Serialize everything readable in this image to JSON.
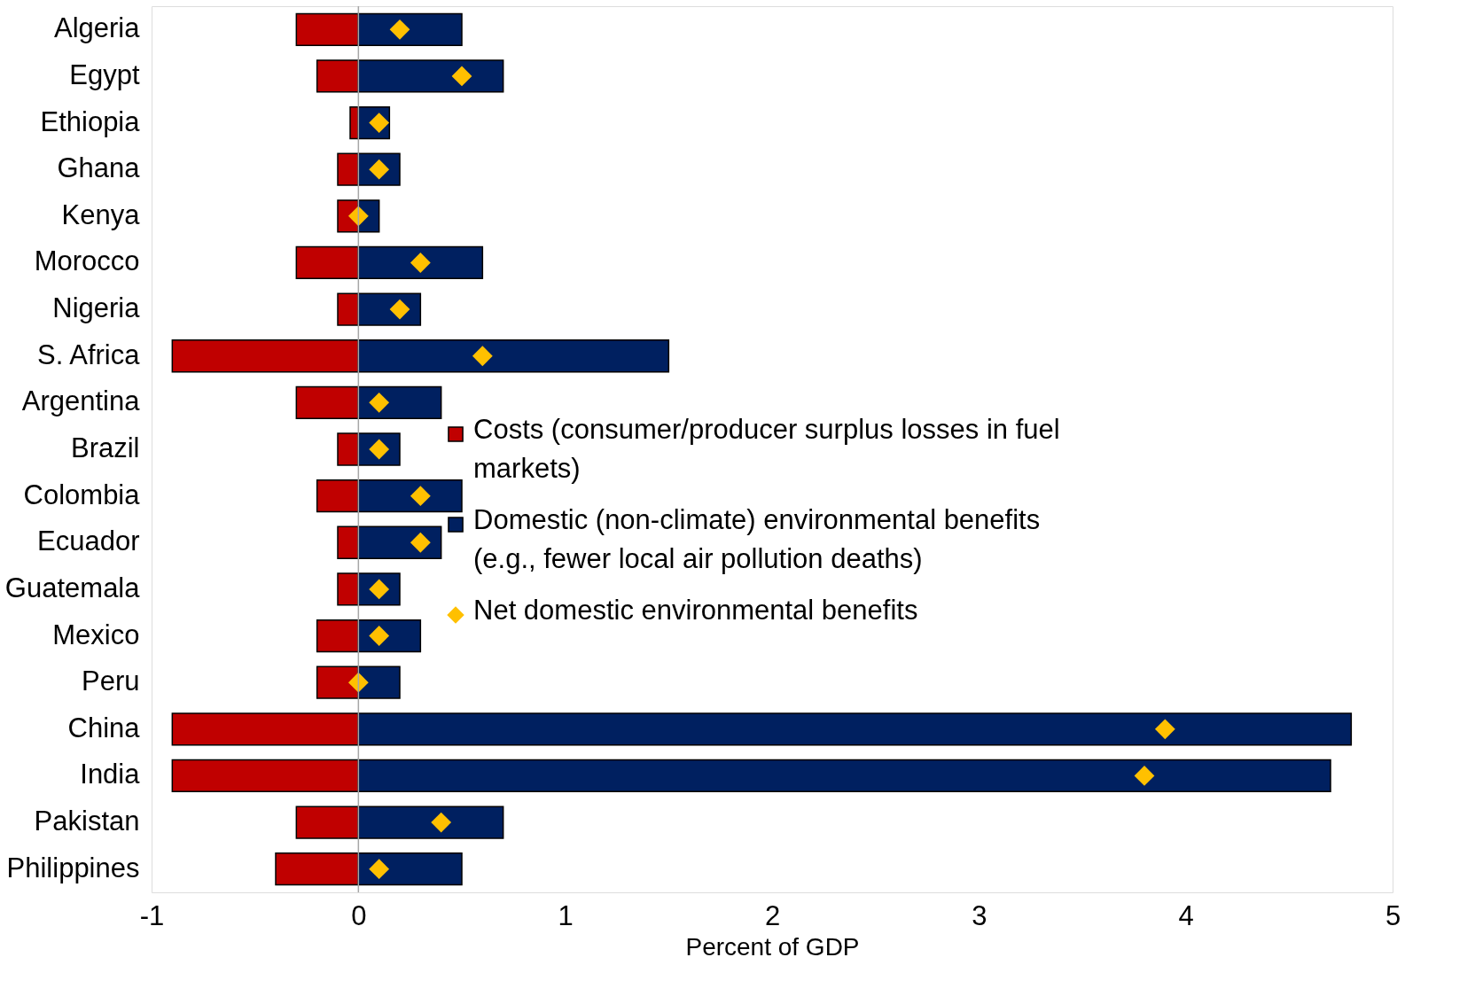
{
  "chart_data": {
    "type": "bar",
    "orientation": "horizontal",
    "xlabel": "Percent of GDP",
    "categories": [
      "Algeria",
      "Egypt",
      "Ethiopia",
      "Ghana",
      "Kenya",
      "Morocco",
      "Nigeria",
      "S. Africa",
      "Argentina",
      "Brazil",
      "Colombia",
      "Ecuador",
      "Guatemala",
      "Mexico",
      "Peru",
      "China",
      "India",
      "Pakistan",
      "Philippines"
    ],
    "series": [
      {
        "name": "Costs (consumer/producer surplus losses in fuel markets)",
        "color": "#c00000",
        "values": [
          -0.3,
          -0.2,
          -0.04,
          -0.1,
          -0.1,
          -0.3,
          -0.1,
          -0.9,
          -0.3,
          -0.1,
          -0.2,
          -0.1,
          -0.1,
          -0.2,
          -0.2,
          -0.9,
          -0.9,
          -0.3,
          -0.4
        ]
      },
      {
        "name": "Domestic (non-climate) environmental benefits (e.g., fewer local air pollution deaths)",
        "color": "#002060",
        "values": [
          0.5,
          0.7,
          0.15,
          0.2,
          0.1,
          0.6,
          0.3,
          1.5,
          0.4,
          0.2,
          0.5,
          0.4,
          0.2,
          0.3,
          0.2,
          4.8,
          4.7,
          0.7,
          0.5
        ]
      },
      {
        "name": "Net domestic environmental benefits",
        "type": "scatter",
        "marker": "diamond",
        "color": "#ffc000",
        "values": [
          0.2,
          0.5,
          0.1,
          0.1,
          0.0,
          0.3,
          0.2,
          0.6,
          0.1,
          0.1,
          0.3,
          0.3,
          0.1,
          0.1,
          0.0,
          3.9,
          3.8,
          0.4,
          0.1
        ]
      }
    ],
    "xlim": [
      -1,
      5
    ],
    "xticks": [
      -1,
      0,
      1,
      2,
      3,
      4,
      5
    ],
    "ref_lines": [
      {
        "axis": "x",
        "value": 0,
        "color": "#a6a6a6"
      }
    ],
    "grid": false,
    "legend": "right",
    "stacked": true
  }
}
